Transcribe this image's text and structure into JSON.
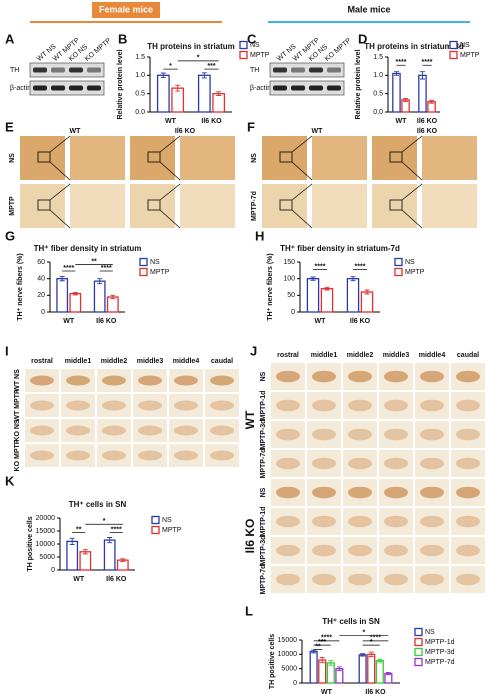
{
  "headers": {
    "female": "Female mice",
    "male": "Male mice"
  },
  "panels": [
    "A",
    "B",
    "C",
    "D",
    "E",
    "F",
    "G",
    "H",
    "I",
    "J",
    "K",
    "L"
  ],
  "blots": [
    {
      "lanes": [
        "WT NS",
        "WT MPTP",
        "KO NS",
        "KO MPTP"
      ],
      "rows": [
        "TH",
        "β-actin"
      ]
    },
    {
      "lanes": [
        "WT NS",
        "WT MPTP",
        "KO NS",
        "KO MPTP"
      ],
      "rows": [
        "TH",
        "β-actin"
      ]
    }
  ],
  "stains": [
    {
      "columns": [
        "WT",
        "Il6 KO"
      ],
      "rows": [
        "NS",
        "MPTP"
      ]
    },
    {
      "columns": [
        "WT",
        "Il6 KO"
      ],
      "rows": [
        "NS",
        "MPTP-7d"
      ]
    }
  ],
  "sections": [
    {
      "columns": [
        "rostral",
        "middle1",
        "middle2",
        "middle3",
        "middle4",
        "caudal"
      ],
      "rows": [
        "WT NS",
        "WT MPTP",
        "KO NS",
        "KO MPTP"
      ]
    },
    {
      "columns": [
        "rostral",
        "middle1",
        "middle2",
        "middle3",
        "middle4",
        "caudal"
      ],
      "groups": [
        "WT",
        "Il6 KO"
      ],
      "rows": [
        "NS",
        "MPTP-1d",
        "MPTP-3d",
        "MPTP-7d",
        "NS",
        "MPTP-1d",
        "MPTP-3d",
        "MPTP-7d"
      ]
    }
  ],
  "chart_data": [
    {
      "type": "bar",
      "title": "TH proteins in striatum",
      "y_label": "Relative protein level",
      "categories": [
        "WT",
        "Il6 KO"
      ],
      "series": [
        {
          "name": "NS",
          "color": "#2b3aa8",
          "values": [
            1.0,
            1.0
          ],
          "errors": [
            0.06,
            0.07
          ]
        },
        {
          "name": "MPTP",
          "color": "#e03030",
          "values": [
            0.65,
            0.5
          ],
          "errors": [
            0.08,
            0.05
          ]
        }
      ],
      "ylim": [
        0,
        1.5
      ],
      "yticks": [
        {
          "value": 0,
          "label": "0.0"
        },
        0.5,
        {
          "value": 1,
          "label": "1.0"
        },
        1.5
      ],
      "annotations": [
        "*",
        "*",
        "***"
      ]
    },
    {
      "type": "bar",
      "title": "TH proteins in striatum-3d",
      "y_label": "Relative protein level",
      "categories": [
        "WT",
        "Il6 KO"
      ],
      "series": [
        {
          "name": "NS",
          "color": "#2b3aa8",
          "values": [
            1.05,
            1.0
          ],
          "errors": [
            0.05,
            0.1
          ]
        },
        {
          "name": "MPTP",
          "color": "#e03030",
          "values": [
            0.33,
            0.28
          ],
          "errors": [
            0.04,
            0.04
          ]
        }
      ],
      "ylim": [
        0,
        1.5
      ],
      "yticks": [
        {
          "value": 0,
          "label": "0.0"
        },
        0.5,
        {
          "value": 1,
          "label": "1.0"
        },
        1.5
      ],
      "annotations": [
        "****",
        "****"
      ]
    },
    {
      "type": "bar",
      "title": "TH⁺ fiber density in striatum",
      "y_label": "TH⁺ nerve fibers (%)",
      "categories": [
        "WT",
        "Il6 KO"
      ],
      "series": [
        {
          "name": "NS",
          "color": "#2b3aa8",
          "values": [
            40,
            37
          ],
          "errors": [
            2.5,
            3
          ]
        },
        {
          "name": "MPTP",
          "color": "#e03030",
          "values": [
            22,
            18
          ],
          "errors": [
            1.5,
            2
          ]
        }
      ],
      "ylim": [
        0,
        60
      ],
      "yticks": [
        0,
        20,
        40,
        60
      ],
      "annotations": [
        "****",
        "**",
        "****"
      ]
    },
    {
      "type": "bar",
      "title": "TH⁺ fiber density in striatum-7d",
      "y_label": "TH⁺ nerve fibers (%)",
      "categories": [
        "WT",
        "Il6 KO"
      ],
      "series": [
        {
          "name": "NS",
          "color": "#2b3aa8",
          "values": [
            100,
            100
          ],
          "errors": [
            5,
            6
          ]
        },
        {
          "name": "MPTP",
          "color": "#e03030",
          "values": [
            70,
            60
          ],
          "errors": [
            4,
            6
          ]
        }
      ],
      "ylim": [
        0,
        150
      ],
      "yticks": [
        0,
        50,
        100,
        150
      ],
      "annotations": [
        "****",
        "****"
      ]
    },
    {
      "type": "bar",
      "title": "TH⁺ cells in SN",
      "y_label": "TH positive cells",
      "categories": [
        "WT",
        "Il6 KO"
      ],
      "series": [
        {
          "name": "NS",
          "color": "#2b3aa8",
          "values": [
            11000,
            11500
          ],
          "errors": [
            1200,
            1000
          ]
        },
        {
          "name": "MPTP",
          "color": "#e03030",
          "values": [
            7000,
            3800
          ],
          "errors": [
            800,
            500
          ]
        }
      ],
      "ylim": [
        0,
        20000
      ],
      "yticks": [
        0,
        5000,
        10000,
        15000,
        20000
      ],
      "annotations": [
        "**",
        "*",
        "****"
      ]
    },
    {
      "type": "bar",
      "title": "TH⁺ cells in SN",
      "y_label": "TH positive cells",
      "categories": [
        "WT",
        "Il6 KO"
      ],
      "series": [
        {
          "name": "NS",
          "color": "#2b3aa8",
          "values": [
            11000,
            9800
          ],
          "errors": [
            500,
            400
          ]
        },
        {
          "name": "MPTP-1d",
          "color": "#e03030",
          "values": [
            8000,
            10000
          ],
          "errors": [
            900,
            800
          ]
        },
        {
          "name": "MPTP-3d",
          "color": "#33cc33",
          "values": [
            7000,
            7800
          ],
          "errors": [
            800,
            500
          ]
        },
        {
          "name": "MPTP-7d",
          "color": "#9933cc",
          "values": [
            5000,
            3300
          ],
          "errors": [
            600,
            400
          ]
        }
      ],
      "ylim": [
        0,
        15000
      ],
      "yticks": [
        0,
        5000,
        10000,
        15000
      ],
      "annotations": [
        "****",
        "***",
        "**",
        "*",
        "****",
        "*"
      ]
    }
  ]
}
